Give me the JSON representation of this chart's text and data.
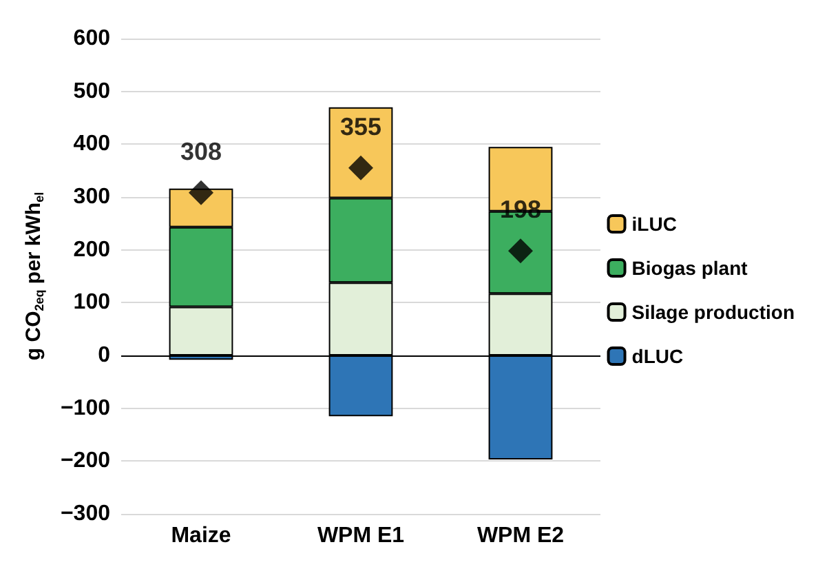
{
  "chart_data": {
    "type": "bar",
    "stacked": true,
    "ylabel": "g CO$_{2eq}$ per kWh$_{el}$",
    "categories": [
      "Maize",
      "WPM E1",
      "WPM E2"
    ],
    "series": [
      {
        "name": "dLUC",
        "color": "#2e75b6",
        "values": [
          -8,
          -115,
          -197
        ]
      },
      {
        "name": "Silage production",
        "color": "#e2efd9",
        "values": [
          92,
          138,
          117
        ]
      },
      {
        "name": "Biogas plant",
        "color": "#3cae5f",
        "values": [
          151,
          160,
          156
        ]
      },
      {
        "name": "iLUC",
        "color": "#f7c75a",
        "values": [
          73,
          172,
          122
        ]
      },
      {
        "type": "scatter",
        "x": [
          "Maize",
          "WPM E1",
          "WPM E2"
        ],
        "color": "#000000",
        "marker": "diamond",
        "values": [
          308,
          355,
          198
        ],
        "value_labels": [
          "308",
          "355",
          "198"
        ]
      }
    ],
    "ylim": [
      -300,
      600
    ],
    "yticks": [
      {
        "value": -300,
        "label": "−300"
      },
      {
        "value": -200,
        "label": "−200"
      },
      {
        "value": -100,
        "label": "−100"
      },
      0,
      100,
      200,
      300,
      400,
      500,
      600
    ],
    "grid": "y",
    "legend": "right"
  }
}
